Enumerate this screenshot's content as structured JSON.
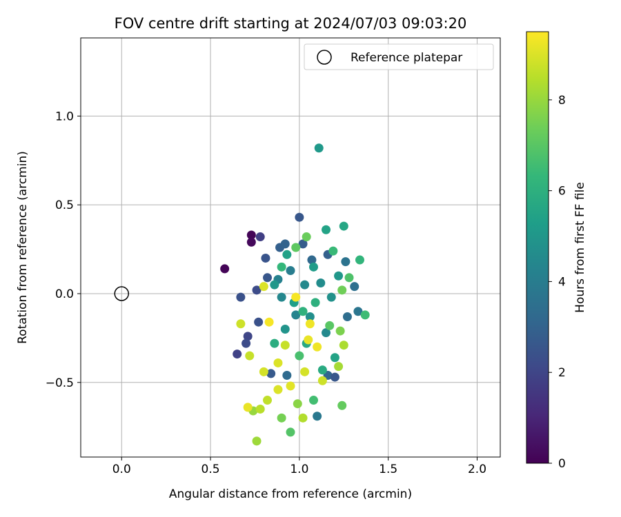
{
  "chart_data": {
    "type": "scatter",
    "title": "FOV centre drift starting at 2024/07/03 09:03:20",
    "xlabel": "Angular distance from reference (arcmin)",
    "ylabel": "Rotation from reference (arcmin)",
    "xlim": [
      -0.23,
      2.13
    ],
    "ylim": [
      -0.92,
      1.44
    ],
    "xticks": [
      "0.0",
      "0.5",
      "1.0",
      "1.5",
      "2.0"
    ],
    "xtick_values": [
      0.0,
      0.5,
      1.0,
      1.5,
      2.0
    ],
    "yticks": [
      "−0.5",
      "0.0",
      "0.5",
      "1.0"
    ],
    "ytick_values": [
      -0.5,
      0.0,
      0.5,
      1.0
    ],
    "grid": true,
    "legend": {
      "placement": "top-right",
      "entries": [
        "Reference platepar"
      ]
    },
    "reference_point": {
      "x": 0.0,
      "y": 0.0,
      "name": "Reference platepar"
    },
    "colorbar": {
      "label": "Hours from first FF file",
      "range": [
        0,
        9.5
      ],
      "ticks": [
        "0",
        "2",
        "4",
        "6",
        "8"
      ],
      "tick_values": [
        0,
        2,
        4,
        6,
        8
      ],
      "colormap": "viridis"
    },
    "colormap_stops": [
      "#440154",
      "#482878",
      "#3e4989",
      "#31688e",
      "#26828e",
      "#1f9e89",
      "#35b779",
      "#6ece58",
      "#b5de2b",
      "#fde725"
    ],
    "series": [
      {
        "points": [
          [
            0.58,
            0.14,
            0.1
          ],
          [
            0.73,
            0.33,
            0.1
          ],
          [
            0.73,
            0.29,
            0.2
          ],
          [
            0.78,
            0.32,
            1.8
          ],
          [
            0.65,
            -0.34,
            1.9
          ],
          [
            0.71,
            -0.24,
            2.0
          ],
          [
            0.7,
            -0.28,
            2.2
          ],
          [
            0.67,
            -0.02,
            2.4
          ],
          [
            0.76,
            0.02,
            2.2
          ],
          [
            0.81,
            0.2,
            2.5
          ],
          [
            0.82,
            0.09,
            2.6
          ],
          [
            0.77,
            -0.16,
            2.4
          ],
          [
            1.0,
            0.43,
            2.6
          ],
          [
            0.89,
            0.26,
            2.9
          ],
          [
            0.92,
            0.28,
            3.0
          ],
          [
            1.02,
            0.28,
            2.8
          ],
          [
            1.07,
            0.19,
            3.2
          ],
          [
            1.16,
            0.22,
            2.9
          ],
          [
            0.84,
            -0.45,
            2.7
          ],
          [
            0.93,
            -0.46,
            3.3
          ],
          [
            1.16,
            -0.46,
            3.1
          ],
          [
            1.2,
            -0.47,
            2.6
          ],
          [
            1.1,
            -0.69,
            3.8
          ],
          [
            1.33,
            -0.1,
            3.7
          ],
          [
            1.26,
            0.18,
            3.6
          ],
          [
            1.31,
            0.04,
            3.5
          ],
          [
            1.27,
            -0.13,
            3.4
          ],
          [
            0.95,
            0.13,
            4.0
          ],
          [
            0.88,
            0.08,
            4.2
          ],
          [
            0.9,
            -0.02,
            4.4
          ],
          [
            1.03,
            0.05,
            4.5
          ],
          [
            1.12,
            0.06,
            4.6
          ],
          [
            1.18,
            -0.02,
            4.8
          ],
          [
            1.06,
            -0.13,
            4.7
          ],
          [
            0.98,
            -0.12,
            4.3
          ],
          [
            0.92,
            -0.2,
            4.9
          ],
          [
            1.15,
            -0.22,
            4.5
          ],
          [
            0.86,
            0.05,
            5.0
          ],
          [
            1.22,
            0.1,
            5.0
          ],
          [
            1.08,
            0.15,
            5.2
          ],
          [
            1.11,
            0.82,
            5.1
          ],
          [
            1.15,
            0.36,
            5.5
          ],
          [
            1.25,
            0.38,
            5.6
          ],
          [
            0.93,
            0.22,
            5.4
          ],
          [
            0.97,
            -0.05,
            5.3
          ],
          [
            1.04,
            -0.28,
            5.7
          ],
          [
            1.2,
            -0.36,
            5.5
          ],
          [
            1.13,
            -0.43,
            5.8
          ],
          [
            0.86,
            -0.28,
            5.9
          ],
          [
            1.02,
            -0.1,
            6.1
          ],
          [
            1.09,
            -0.05,
            6.0
          ],
          [
            0.9,
            0.15,
            6.3
          ],
          [
            1.19,
            0.24,
            6.4
          ],
          [
            1.34,
            0.19,
            6.2
          ],
          [
            1.37,
            -0.12,
            6.5
          ],
          [
            1.28,
            0.09,
            6.8
          ],
          [
            1.0,
            -0.35,
            6.7
          ],
          [
            1.08,
            -0.6,
            6.6
          ],
          [
            0.95,
            -0.78,
            6.9
          ],
          [
            1.24,
            -0.63,
            7.2
          ],
          [
            1.17,
            -0.18,
            7.0
          ],
          [
            0.98,
            0.26,
            7.1
          ],
          [
            1.04,
            0.32,
            7.3
          ],
          [
            1.24,
            0.02,
            7.4
          ],
          [
            1.23,
            -0.21,
            7.6
          ],
          [
            0.99,
            -0.62,
            7.8
          ],
          [
            0.9,
            -0.7,
            7.5
          ],
          [
            0.76,
            -0.83,
            8.1
          ],
          [
            0.74,
            -0.66,
            8.0
          ],
          [
            1.22,
            -0.41,
            8.2
          ],
          [
            1.25,
            -0.29,
            8.3
          ],
          [
            1.02,
            -0.7,
            8.4
          ],
          [
            0.82,
            -0.6,
            8.6
          ],
          [
            0.78,
            -0.65,
            8.5
          ],
          [
            0.72,
            -0.35,
            8.7
          ],
          [
            0.67,
            -0.17,
            8.8
          ],
          [
            0.8,
            -0.44,
            8.9
          ],
          [
            0.88,
            -0.39,
            9.0
          ],
          [
            0.95,
            -0.52,
            9.1
          ],
          [
            1.05,
            -0.26,
            9.2
          ],
          [
            1.1,
            -0.3,
            9.3
          ],
          [
            0.83,
            -0.16,
            9.4
          ],
          [
            0.98,
            -0.02,
            9.4
          ],
          [
            1.06,
            -0.17,
            9.3
          ],
          [
            0.71,
            -0.64,
            9.2
          ],
          [
            0.88,
            -0.54,
            9.0
          ],
          [
            1.03,
            -0.44,
            8.9
          ],
          [
            1.13,
            -0.49,
            8.8
          ],
          [
            0.92,
            -0.29,
            8.7
          ],
          [
            0.8,
            0.04,
            9.0
          ]
        ]
      }
    ]
  }
}
